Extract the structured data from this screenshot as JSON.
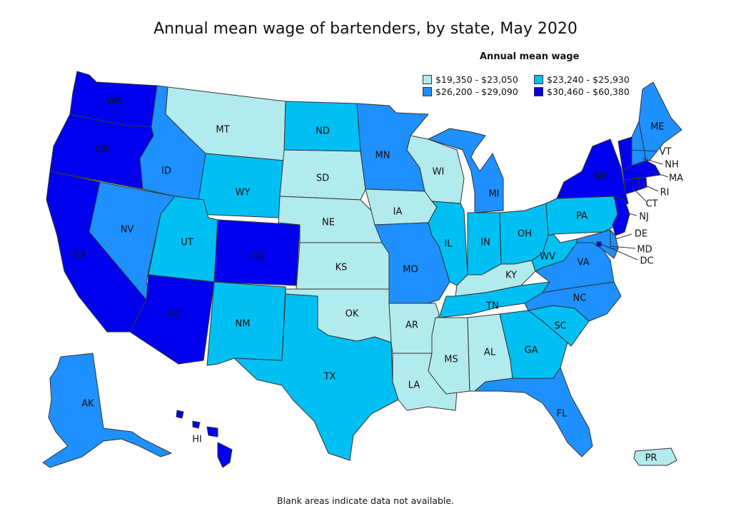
{
  "title": "Annual mean wage of bartenders, by state, May 2020",
  "legend": {
    "title": "Annual mean wage",
    "bins": [
      {
        "label": "$19,350 - $23,050",
        "color": "#b2ebed"
      },
      {
        "label": "$23,240 - $25,930",
        "color": "#00bff3"
      },
      {
        "label": "$26,200 - $29,090",
        "color": "#1e90ff"
      },
      {
        "label": "$30,460 - $60,380",
        "color": "#0000ee"
      }
    ]
  },
  "footnote": "Blank areas indicate data not available.",
  "states": {
    "WA": {
      "bin": 3
    },
    "OR": {
      "bin": 3
    },
    "CA": {
      "bin": 3
    },
    "NV": {
      "bin": 2
    },
    "ID": {
      "bin": 2
    },
    "MT": {
      "bin": 0
    },
    "WY": {
      "bin": 1
    },
    "UT": {
      "bin": 1
    },
    "AZ": {
      "bin": 3
    },
    "CO": {
      "bin": 3
    },
    "NM": {
      "bin": 1
    },
    "ND": {
      "bin": 1
    },
    "SD": {
      "bin": 0
    },
    "NE": {
      "bin": 0
    },
    "KS": {
      "bin": 0
    },
    "OK": {
      "bin": 0
    },
    "TX": {
      "bin": 1
    },
    "MN": {
      "bin": 2
    },
    "IA": {
      "bin": 0
    },
    "MO": {
      "bin": 2
    },
    "AR": {
      "bin": 0
    },
    "LA": {
      "bin": 0
    },
    "WI": {
      "bin": 0
    },
    "IL": {
      "bin": 1
    },
    "MI": {
      "bin": 2
    },
    "IN": {
      "bin": 1
    },
    "OH": {
      "bin": 1
    },
    "KY": {
      "bin": 0
    },
    "TN": {
      "bin": 1
    },
    "MS": {
      "bin": 0
    },
    "AL": {
      "bin": 0
    },
    "GA": {
      "bin": 1
    },
    "FL": {
      "bin": 2
    },
    "SC": {
      "bin": 1
    },
    "NC": {
      "bin": 2
    },
    "VA": {
      "bin": 2
    },
    "WV": {
      "bin": 1
    },
    "PA": {
      "bin": 1
    },
    "NY": {
      "bin": 3
    },
    "VT": {
      "bin": 3
    },
    "NH": {
      "bin": 2
    },
    "ME": {
      "bin": 2
    },
    "MA": {
      "bin": 3
    },
    "RI": {
      "bin": 3
    },
    "CT": {
      "bin": 3
    },
    "NJ": {
      "bin": 3
    },
    "DE": {
      "bin": 2
    },
    "MD": {
      "bin": 2
    },
    "DC": {
      "bin": 3
    },
    "AK": {
      "bin": 2
    },
    "HI": {
      "bin": 3
    },
    "PR": {
      "bin": 0
    }
  }
}
